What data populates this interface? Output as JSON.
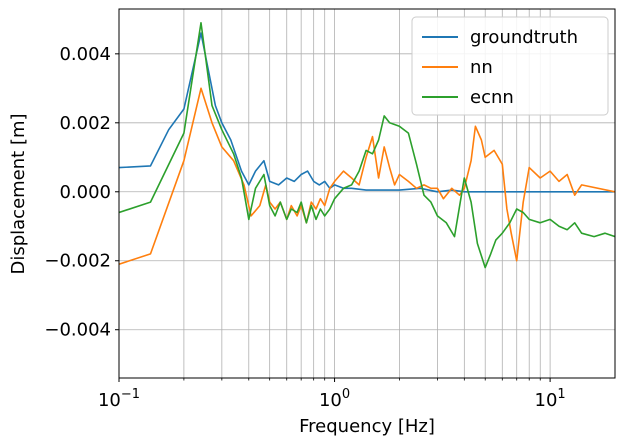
{
  "chart_data": {
    "type": "line",
    "title": "",
    "xlabel": "Frequency [Hz]",
    "ylabel": "Displacement [m]",
    "xscale": "log",
    "xlim": [
      0.1,
      20
    ],
    "ylim": [
      -0.0054,
      0.0053
    ],
    "grid": "both",
    "legend": "top-right",
    "x_ticks": [
      {
        "value": 0.1,
        "base": "10",
        "exp": "−1"
      },
      {
        "value": 1,
        "base": "10",
        "exp": "0"
      },
      {
        "value": 10,
        "base": "10",
        "exp": "1"
      }
    ],
    "y_ticks": [
      {
        "value": -0.004,
        "label": "−0.004"
      },
      {
        "value": -0.002,
        "label": "−0.002"
      },
      {
        "value": 0.0,
        "label": "0.000"
      },
      {
        "value": 0.002,
        "label": "0.002"
      },
      {
        "value": 0.004,
        "label": "0.004"
      }
    ],
    "series": [
      {
        "name": "groundtruth",
        "color": "#1f77b4",
        "x": [
          0.1,
          0.14,
          0.17,
          0.2,
          0.24,
          0.28,
          0.3,
          0.33,
          0.37,
          0.4,
          0.43,
          0.47,
          0.5,
          0.55,
          0.6,
          0.65,
          0.7,
          0.75,
          0.8,
          0.85,
          0.9,
          0.95,
          1.0,
          1.1,
          1.2,
          1.4,
          1.6,
          2.0,
          2.5,
          3.0,
          3.5,
          4.0,
          5.0,
          7.0,
          10.0,
          14.0,
          20.0
        ],
        "y": [
          0.0007,
          0.00075,
          0.0018,
          0.0024,
          0.0046,
          0.0025,
          0.002,
          0.0015,
          0.0006,
          0.0002,
          0.0006,
          0.0009,
          0.0003,
          0.0002,
          0.0004,
          0.0003,
          0.0005,
          0.0006,
          0.0003,
          0.0002,
          0.0003,
          0.0001,
          0.0002,
          0.0001,
          0.0001,
          5e-05,
          5e-05,
          5e-05,
          0.0001,
          0.0,
          5e-05,
          0.0,
          0.0,
          0.0,
          0.0,
          0.0,
          0.0
        ]
      },
      {
        "name": "nn",
        "color": "#ff7f0e",
        "x": [
          0.1,
          0.14,
          0.2,
          0.24,
          0.27,
          0.3,
          0.34,
          0.38,
          0.41,
          0.45,
          0.48,
          0.5,
          0.53,
          0.56,
          0.6,
          0.63,
          0.67,
          0.7,
          0.74,
          0.78,
          0.82,
          0.86,
          0.9,
          0.95,
          1.0,
          1.1,
          1.2,
          1.3,
          1.4,
          1.5,
          1.6,
          1.7,
          1.8,
          1.9,
          2.0,
          2.2,
          2.4,
          2.6,
          2.8,
          3.0,
          3.2,
          3.5,
          3.8,
          4.0,
          4.3,
          4.5,
          4.8,
          5.0,
          5.5,
          6.0,
          6.3,
          6.6,
          7.0,
          7.5,
          8.0,
          9.0,
          10.0,
          11.0,
          12.0,
          13.0,
          14.0,
          20.0
        ],
        "y": [
          -0.0021,
          -0.0018,
          0.0009,
          0.003,
          0.002,
          0.0013,
          0.0009,
          0.0002,
          -0.0007,
          -0.0004,
          0.0002,
          -0.0003,
          -0.0005,
          -0.0003,
          -0.0008,
          -0.0004,
          -0.0007,
          -0.0004,
          -0.0009,
          -0.0003,
          -0.0005,
          -0.0002,
          -0.0004,
          0.0001,
          0.0003,
          0.0006,
          0.0004,
          0.0002,
          0.001,
          0.0016,
          0.0004,
          0.0013,
          0.0007,
          0.0002,
          0.0005,
          0.0003,
          0.0001,
          0.0002,
          0.0001,
          0.0001,
          -0.0002,
          0.0001,
          -0.0001,
          0.0001,
          0.0009,
          0.0019,
          0.0015,
          0.001,
          0.0012,
          0.0008,
          -0.0005,
          -0.0012,
          -0.002,
          -0.0003,
          0.0007,
          0.0004,
          0.0006,
          0.0003,
          0.0005,
          -0.0001,
          0.0002,
          0.0
        ]
      },
      {
        "name": "ecnn",
        "color": "#2ca02c",
        "x": [
          0.1,
          0.14,
          0.2,
          0.24,
          0.27,
          0.3,
          0.34,
          0.37,
          0.4,
          0.43,
          0.47,
          0.5,
          0.53,
          0.56,
          0.6,
          0.63,
          0.67,
          0.7,
          0.74,
          0.78,
          0.82,
          0.86,
          0.9,
          0.95,
          1.0,
          1.1,
          1.2,
          1.3,
          1.4,
          1.5,
          1.6,
          1.7,
          1.8,
          2.0,
          2.2,
          2.4,
          2.6,
          2.8,
          3.0,
          3.3,
          3.6,
          4.0,
          4.3,
          4.6,
          5.0,
          5.3,
          5.6,
          6.0,
          6.5,
          7.0,
          7.5,
          8.0,
          9.0,
          10.0,
          11.0,
          12.0,
          13.0,
          14.0,
          16.0,
          18.0,
          20.0
        ],
        "y": [
          -0.0006,
          -0.0003,
          0.0017,
          0.0049,
          0.0025,
          0.0018,
          0.0011,
          0.0004,
          -0.0008,
          0.0001,
          0.0005,
          -0.0004,
          -0.0007,
          -0.0003,
          -0.0008,
          -0.0005,
          -0.0006,
          -0.0003,
          -0.0009,
          -0.0004,
          -0.0008,
          -0.0005,
          -0.0007,
          -0.0005,
          -0.0002,
          0.0001,
          0.0002,
          0.0006,
          0.0012,
          0.0011,
          0.0015,
          0.0022,
          0.002,
          0.0019,
          0.0017,
          0.0008,
          -0.0001,
          -0.0003,
          -0.0007,
          -0.0009,
          -0.0013,
          0.0004,
          -0.0003,
          -0.0015,
          -0.0022,
          -0.0018,
          -0.0014,
          -0.0012,
          -0.0009,
          -0.0005,
          -0.0006,
          -0.0008,
          -0.0009,
          -0.0008,
          -0.001,
          -0.0011,
          -0.0009,
          -0.0012,
          -0.0013,
          -0.0012,
          -0.0013
        ]
      }
    ]
  }
}
